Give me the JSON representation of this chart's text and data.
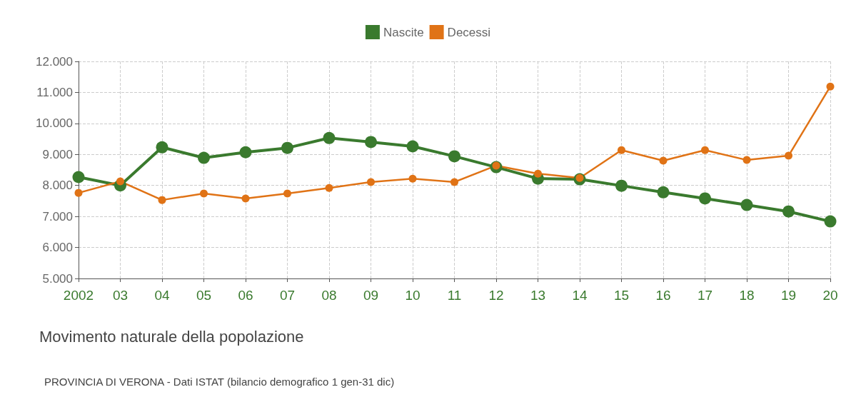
{
  "chart_data": {
    "type": "line",
    "title": "Movimento naturale della popolazione",
    "annotations": [
      "PROVINCIA DI VERONA - Dati ISTAT (bilancio demografico 1 gen-31 dic)"
    ],
    "categories": [
      "2002",
      "03",
      "04",
      "05",
      "06",
      "07",
      "08",
      "09",
      "10",
      "11",
      "12",
      "13",
      "14",
      "15",
      "16",
      "17",
      "18",
      "19",
      "20"
    ],
    "series": [
      {
        "name": "Nascite",
        "color": "#3a7a2e",
        "values": [
          8270,
          8000,
          9230,
          8890,
          9070,
          9210,
          9530,
          9400,
          9260,
          8940,
          8590,
          8220,
          8200,
          7990,
          7780,
          7580,
          7370,
          7160,
          6840
        ]
      },
      {
        "name": "Decessi",
        "color": "#e07316",
        "values": [
          7760,
          8130,
          7530,
          7740,
          7580,
          7740,
          7920,
          8110,
          8220,
          8110,
          8640,
          8380,
          8240,
          9140,
          8800,
          9140,
          8820,
          8960,
          11190
        ]
      }
    ],
    "ylim": [
      5000,
      12000
    ],
    "yticks": [
      {
        "value": 5000,
        "label": "5.000"
      },
      {
        "value": 6000,
        "label": "6.000"
      },
      {
        "value": 7000,
        "label": "7.000"
      },
      {
        "value": 8000,
        "label": "8.000"
      },
      {
        "value": 9000,
        "label": "9.000"
      },
      {
        "value": 10000,
        "label": "10.000"
      },
      {
        "value": 11000,
        "label": "11.000"
      },
      {
        "value": 12000,
        "label": "12.000"
      }
    ],
    "grid": true,
    "legend": "top",
    "marker": "circle",
    "line_style": "solid"
  }
}
